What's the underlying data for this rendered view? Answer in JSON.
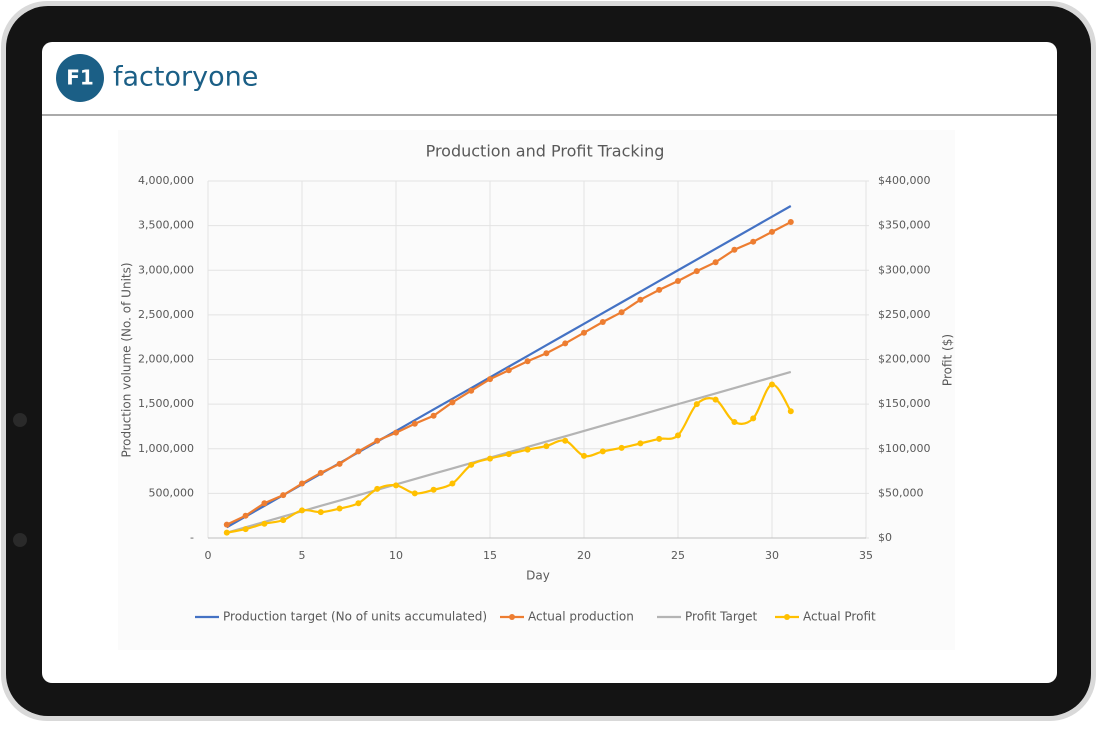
{
  "header": {
    "logo_mark": "F1",
    "brand": "factoryone"
  },
  "chart_data": {
    "type": "line",
    "title": "Production and Profit Tracking",
    "x_label": "Day",
    "y_label": "Production volume  (No. of Units)",
    "y2_label": "Profit ($)",
    "x": [
      1,
      2,
      3,
      4,
      5,
      6,
      7,
      8,
      9,
      10,
      11,
      12,
      13,
      14,
      15,
      16,
      17,
      18,
      19,
      20,
      21,
      22,
      23,
      24,
      25,
      26,
      27,
      28,
      29,
      30,
      31
    ],
    "xlim": [
      0,
      35
    ],
    "xticks": [
      0,
      5,
      10,
      15,
      20,
      25,
      30,
      35
    ],
    "ylim": [
      0,
      4000000
    ],
    "yticks": [
      {
        "value": 0,
        "label": "-"
      },
      {
        "value": 500000,
        "label": "500,000"
      },
      {
        "value": 1000000,
        "label": "1,000,000"
      },
      {
        "value": 1500000,
        "label": "1,500,000"
      },
      {
        "value": 2000000,
        "label": "2,000,000"
      },
      {
        "value": 2500000,
        "label": "2,500,000"
      },
      {
        "value": 3000000,
        "label": "3,000,000"
      },
      {
        "value": 3500000,
        "label": "3,500,000"
      },
      {
        "value": 4000000,
        "label": "4,000,000"
      }
    ],
    "y2lim": [
      0,
      400000
    ],
    "y2ticks": [
      {
        "value": 0,
        "label": "$0"
      },
      {
        "value": 50000,
        "label": "$50,000"
      },
      {
        "value": 100000,
        "label": "$100,000"
      },
      {
        "value": 150000,
        "label": "$150,000"
      },
      {
        "value": 200000,
        "label": "$200,000"
      },
      {
        "value": 250000,
        "label": "$250,000"
      },
      {
        "value": 300000,
        "label": "$300,000"
      },
      {
        "value": 350000,
        "label": "$350,000"
      },
      {
        "value": 400000,
        "label": "$400,000"
      }
    ],
    "grid": true,
    "legend": "bottom",
    "series": [
      {
        "name": "Production target (No of units accumulated)",
        "color": "#4472c4",
        "marker": false,
        "smooth": false,
        "values": [
          120000,
          240000,
          360000,
          480000,
          600000,
          720000,
          840000,
          960000,
          1080000,
          1200000,
          1320000,
          1440000,
          1560000,
          1680000,
          1800000,
          1920000,
          2040000,
          2160000,
          2280000,
          2400000,
          2520000,
          2640000,
          2760000,
          2880000,
          3000000,
          3120000,
          3240000,
          3360000,
          3480000,
          3600000,
          3720000
        ]
      },
      {
        "name": "Actual production",
        "color": "#ed7d31",
        "marker": true,
        "smooth": false,
        "values": [
          150000,
          250000,
          390000,
          480000,
          610000,
          730000,
          830000,
          970000,
          1090000,
          1180000,
          1280000,
          1370000,
          1520000,
          1650000,
          1780000,
          1880000,
          1980000,
          2070000,
          2180000,
          2300000,
          2420000,
          2530000,
          2670000,
          2780000,
          2880000,
          2990000,
          3090000,
          3230000,
          3320000,
          3430000,
          3540000
        ]
      },
      {
        "name": "Profit Target",
        "color": "#b4b4b4",
        "marker": false,
        "smooth": false,
        "axis": "y2",
        "values": [
          6000,
          12000,
          18000,
          24000,
          30000,
          36000,
          42000,
          48000,
          54000,
          60000,
          66000,
          72000,
          78000,
          84000,
          90000,
          96000,
          102000,
          108000,
          114000,
          120000,
          126000,
          132000,
          138000,
          144000,
          150000,
          156000,
          162000,
          168000,
          174000,
          180000,
          186000
        ]
      },
      {
        "name": "Actual Profit",
        "color": "#ffc000",
        "marker": true,
        "smooth": true,
        "axis": "y2",
        "values": [
          6000,
          10000,
          16000,
          20000,
          31000,
          29000,
          33000,
          39000,
          55000,
          59000,
          50000,
          54000,
          61000,
          82000,
          89000,
          94000,
          99000,
          103000,
          109000,
          92000,
          97000,
          101000,
          106000,
          111000,
          115000,
          150000,
          155000,
          130000,
          134000,
          172000,
          142000
        ]
      }
    ]
  }
}
